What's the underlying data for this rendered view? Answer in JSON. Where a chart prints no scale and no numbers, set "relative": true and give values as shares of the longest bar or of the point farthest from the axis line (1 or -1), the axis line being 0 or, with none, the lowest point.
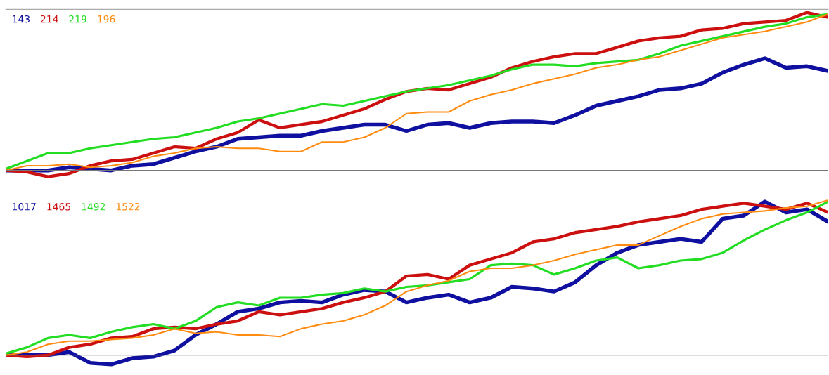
{
  "chart_data": [
    {
      "type": "line",
      "relative": true,
      "legend": "top left",
      "grid": false,
      "categories": [
        null,
        null,
        null,
        null,
        null,
        null,
        null,
        null,
        null,
        null,
        null,
        null,
        null,
        null,
        null,
        null,
        null,
        null,
        null,
        null,
        null,
        null,
        null,
        null,
        null,
        null,
        null,
        null,
        null,
        null,
        null,
        null,
        null,
        null,
        null,
        null,
        null,
        null,
        null,
        null
      ],
      "series": [
        {
          "name": "143",
          "color": "#1010a0",
          "values": [
            0,
            0,
            0,
            0.02,
            0.01,
            0.0,
            0.03,
            0.04,
            0.08,
            0.12,
            0.15,
            0.2,
            0.21,
            0.22,
            0.22,
            0.25,
            0.27,
            0.29,
            0.29,
            0.25,
            0.29,
            0.3,
            0.27,
            0.3,
            0.31,
            0.31,
            0.3,
            0.35,
            0.41,
            0.44,
            0.47,
            0.51,
            0.52,
            0.55,
            0.62,
            0.67,
            0.71,
            0.65,
            0.66,
            0.63
          ]
        },
        {
          "name": "214",
          "color": "#cc1010",
          "values": [
            0,
            -0.01,
            -0.04,
            -0.02,
            0.03,
            0.06,
            0.07,
            0.11,
            0.15,
            0.14,
            0.2,
            0.24,
            0.32,
            0.27,
            0.29,
            0.31,
            0.35,
            0.39,
            0.45,
            0.5,
            0.52,
            0.51,
            0.55,
            0.59,
            0.65,
            0.69,
            0.72,
            0.74,
            0.74,
            0.78,
            0.82,
            0.84,
            0.85,
            0.89,
            0.9,
            0.93,
            0.94,
            0.95,
            1.0,
            0.97
          ]
        },
        {
          "name": "219",
          "color": "#22dd22",
          "values": [
            0.01,
            0.06,
            0.11,
            0.11,
            0.14,
            0.16,
            0.18,
            0.2,
            0.21,
            0.24,
            0.27,
            0.31,
            0.33,
            0.36,
            0.39,
            0.42,
            0.41,
            0.44,
            0.47,
            0.5,
            0.52,
            0.54,
            0.57,
            0.6,
            0.64,
            0.67,
            0.67,
            0.66,
            0.68,
            0.69,
            0.7,
            0.74,
            0.79,
            0.82,
            0.85,
            0.88,
            0.91,
            0.93,
            0.97,
            0.99
          ]
        },
        {
          "name": "196",
          "color": "#ff8c10",
          "values": [
            0,
            0.03,
            0.03,
            0.04,
            0.02,
            0.03,
            0.05,
            0.09,
            0.11,
            0.14,
            0.15,
            0.14,
            0.14,
            0.12,
            0.12,
            0.18,
            0.18,
            0.21,
            0.27,
            0.36,
            0.37,
            0.37,
            0.44,
            0.48,
            0.51,
            0.55,
            0.58,
            0.61,
            0.65,
            0.67,
            0.7,
            0.72,
            0.76,
            0.8,
            0.84,
            0.86,
            0.88,
            0.91,
            0.94,
            0.99
          ]
        }
      ]
    },
    {
      "type": "line",
      "relative": true,
      "legend": "top left",
      "grid": false,
      "categories": [
        null,
        null,
        null,
        null,
        null,
        null,
        null,
        null,
        null,
        null,
        null,
        null,
        null,
        null,
        null,
        null,
        null,
        null,
        null,
        null,
        null,
        null,
        null,
        null,
        null,
        null,
        null,
        null,
        null,
        null,
        null,
        null,
        null,
        null,
        null,
        null,
        null,
        null,
        null,
        null
      ],
      "series": [
        {
          "name": "1017",
          "color": "#1010a0",
          "values": [
            0,
            0,
            0,
            0.02,
            -0.05,
            -0.06,
            -0.02,
            -0.01,
            0.03,
            0.13,
            0.2,
            0.28,
            0.3,
            0.34,
            0.35,
            0.34,
            0.39,
            0.42,
            0.41,
            0.34,
            0.37,
            0.39,
            0.34,
            0.37,
            0.44,
            0.43,
            0.41,
            0.47,
            0.58,
            0.66,
            0.71,
            0.73,
            0.75,
            0.73,
            0.88,
            0.9,
            0.99,
            0.92,
            0.94,
            0.86
          ]
        },
        {
          "name": "1465",
          "color": "#cc1010",
          "values": [
            0,
            -0.01,
            0,
            0.05,
            0.07,
            0.11,
            0.12,
            0.17,
            0.18,
            0.17,
            0.2,
            0.22,
            0.28,
            0.26,
            0.28,
            0.3,
            0.34,
            0.37,
            0.41,
            0.51,
            0.52,
            0.49,
            0.58,
            0.62,
            0.66,
            0.73,
            0.75,
            0.79,
            0.81,
            0.83,
            0.86,
            0.88,
            0.9,
            0.94,
            0.96,
            0.98,
            0.96,
            0.94,
            0.98,
            0.92
          ]
        },
        {
          "name": "1492",
          "color": "#22dd22",
          "values": [
            0.01,
            0.05,
            0.11,
            0.13,
            0.11,
            0.15,
            0.18,
            0.2,
            0.17,
            0.22,
            0.31,
            0.34,
            0.32,
            0.37,
            0.37,
            0.39,
            0.4,
            0.43,
            0.41,
            0.44,
            0.45,
            0.47,
            0.49,
            0.58,
            0.59,
            0.58,
            0.52,
            0.56,
            0.61,
            0.63,
            0.56,
            0.58,
            0.61,
            0.62,
            0.66,
            0.74,
            0.81,
            0.87,
            0.92,
            0.99
          ]
        },
        {
          "name": "1522",
          "color": "#ff8c10",
          "values": [
            0,
            0.02,
            0.07,
            0.09,
            0.09,
            0.1,
            0.11,
            0.13,
            0.17,
            0.14,
            0.15,
            0.13,
            0.13,
            0.12,
            0.17,
            0.2,
            0.22,
            0.26,
            0.32,
            0.41,
            0.45,
            0.48,
            0.54,
            0.56,
            0.56,
            0.58,
            0.61,
            0.65,
            0.68,
            0.71,
            0.71,
            0.77,
            0.83,
            0.88,
            0.91,
            0.92,
            0.93,
            0.95,
            0.96,
            1.0
          ]
        }
      ]
    }
  ]
}
